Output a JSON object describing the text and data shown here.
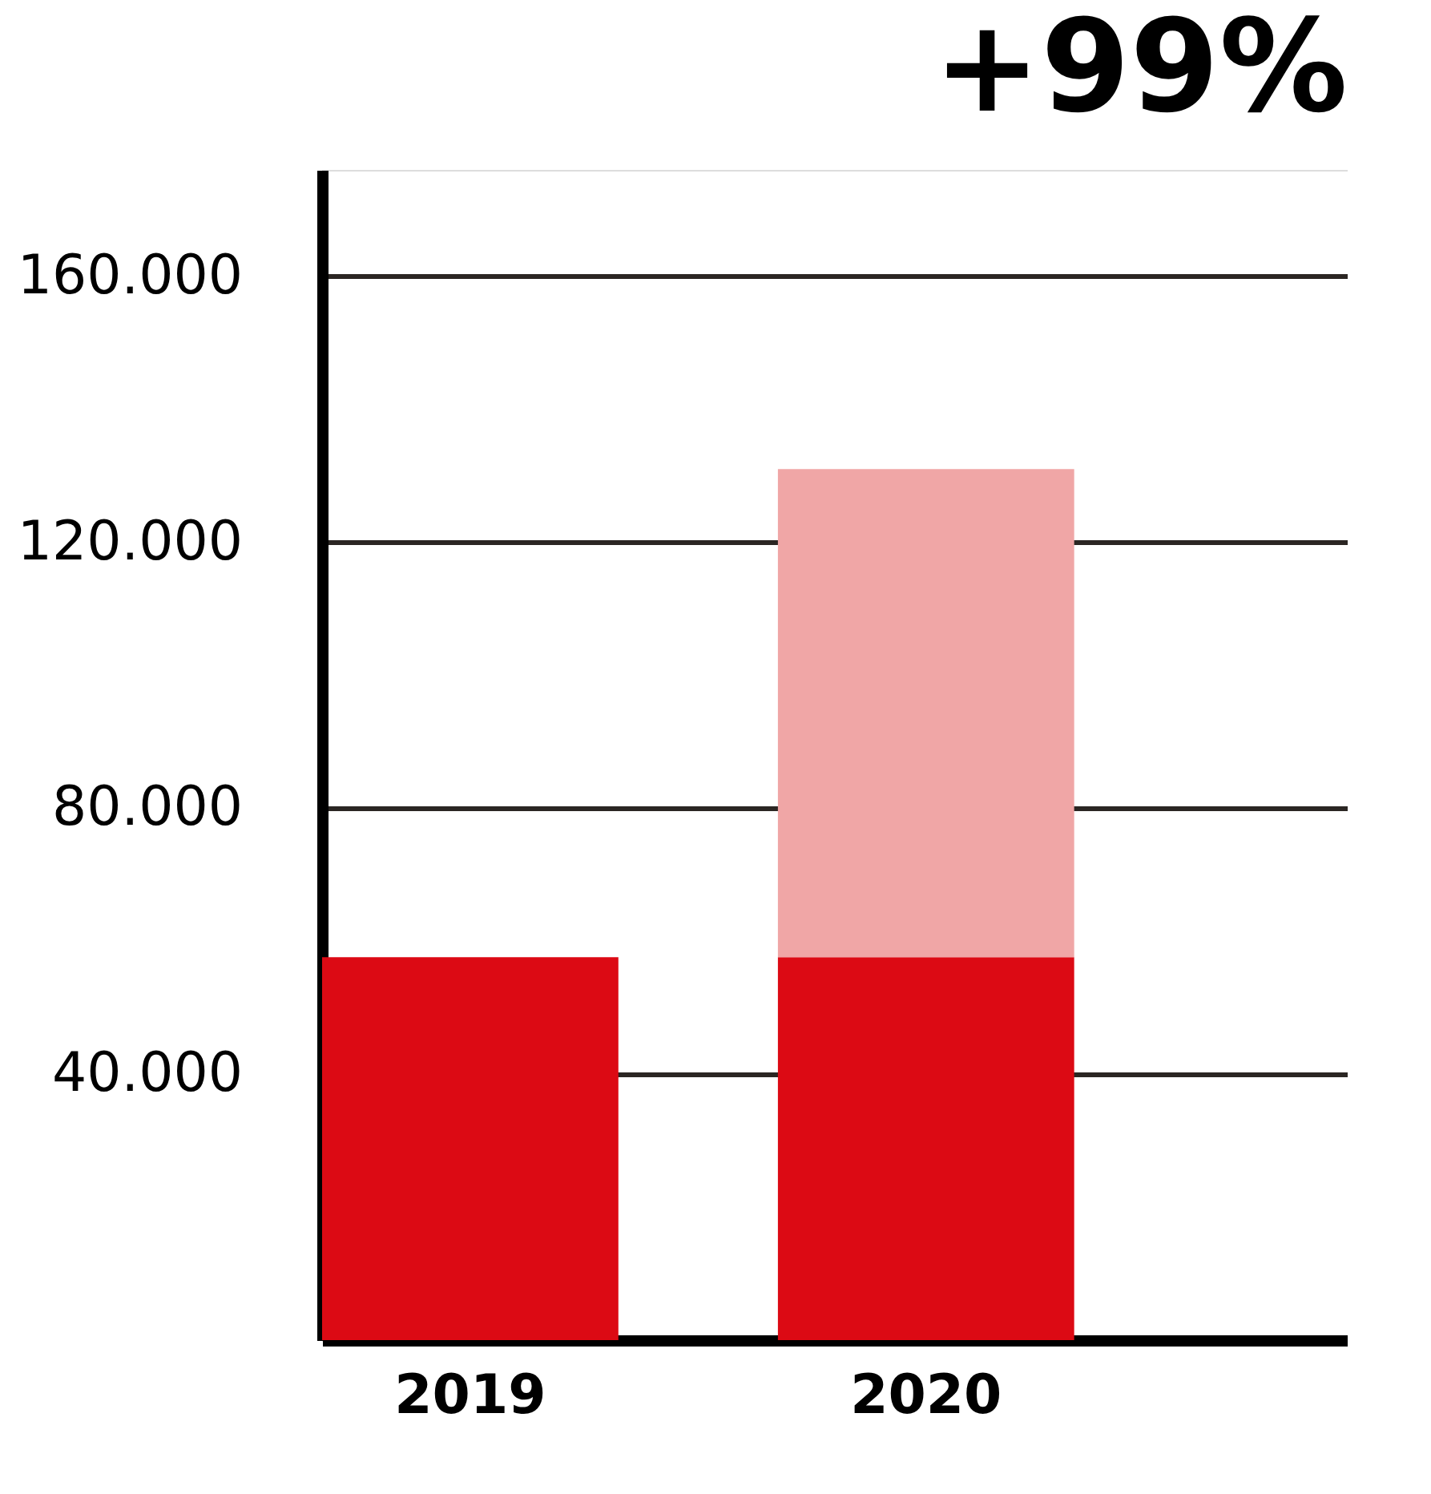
{
  "chart_data": {
    "type": "bar",
    "stacked": true,
    "categories": [
      "2019",
      "2020"
    ],
    "series": [
      {
        "color": "#dc0a14",
        "values": [
          57600,
          57600
        ]
      },
      {
        "color": "#f0a6a6",
        "values": [
          null,
          73400
        ]
      }
    ],
    "ylim": [
      0,
      176000
    ],
    "yticks": [
      {
        "value": 40000,
        "label": "40.000"
      },
      {
        "value": 80000,
        "label": "80.000"
      },
      {
        "value": 120000,
        "label": "120.000"
      },
      {
        "value": 160000,
        "label": "160.000"
      }
    ],
    "grid": "y",
    "legend": false,
    "annotations": [
      "+99%"
    ]
  }
}
